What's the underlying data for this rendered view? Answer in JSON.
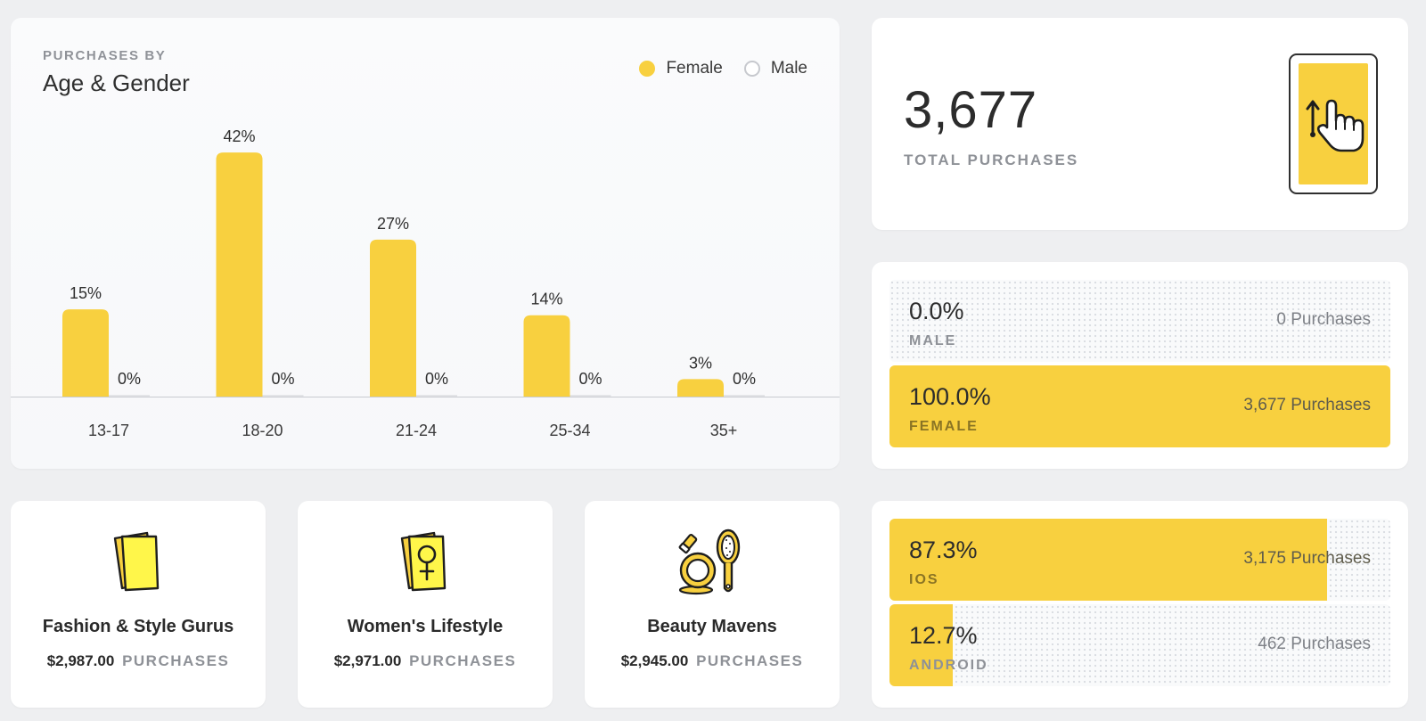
{
  "colors": {
    "accent": "#f8d03f",
    "male": "#c7c9ce",
    "muted": "#8e9197"
  },
  "chart_data": {
    "type": "bar",
    "kicker": "PURCHASES BY",
    "title": "Age & Gender",
    "categories": [
      "13-17",
      "18-20",
      "21-24",
      "25-34",
      "35+"
    ],
    "series": [
      {
        "name": "Female",
        "values": [
          15,
          42,
          27,
          14,
          3
        ]
      },
      {
        "name": "Male",
        "values": [
          0,
          0,
          0,
          0,
          0
        ]
      }
    ],
    "value_suffix": "%",
    "ylim": [
      0,
      46
    ],
    "legend": "top-right",
    "grid": false
  },
  "total": {
    "value": "3,677",
    "label": "TOTAL PURCHASES",
    "icon": "phone-swipe-icon"
  },
  "gender": [
    {
      "pct_text": "0.0%",
      "label": "MALE",
      "count": "0 Purchases",
      "fraction": 0.0
    },
    {
      "pct_text": "100.0%",
      "label": "FEMALE",
      "count": "3,677 Purchases",
      "fraction": 1.0
    }
  ],
  "os": [
    {
      "pct_text": "87.3%",
      "label": "IOS",
      "count": "3,175 Purchases",
      "fraction": 0.873
    },
    {
      "pct_text": "12.7%",
      "label": "ANDROID",
      "count": "462 Purchases",
      "fraction": 0.127
    }
  ],
  "interests": [
    {
      "name": "Fashion & Style Gurus",
      "amount": "$2,987.00",
      "suffix": "PURCHASES",
      "icon": "magazine-icon"
    },
    {
      "name": "Women's Lifestyle",
      "amount": "$2,971.00",
      "suffix": "PURCHASES",
      "icon": "female-magazine-icon"
    },
    {
      "name": "Beauty Mavens",
      "amount": "$2,945.00",
      "suffix": "PURCHASES",
      "icon": "makeup-icon"
    }
  ]
}
